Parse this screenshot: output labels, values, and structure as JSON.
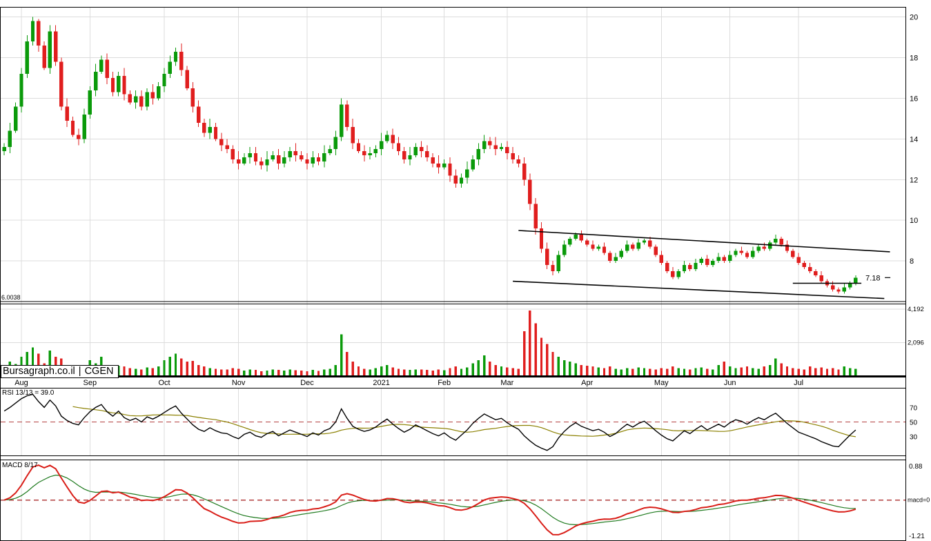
{
  "watermark": {
    "site": "Bursagraph.co.il",
    "separator": "|",
    "ticker": "CGEN"
  },
  "panels": {
    "rsi": {
      "label": "RSI 13/13 = 39.0",
      "ticks": [
        70,
        50,
        30
      ],
      "midline": 50
    },
    "macd": {
      "label": "MACD 8/17",
      "top_label": "0.88",
      "zero_label": "macd=0",
      "bottom_label": "-1.21"
    }
  },
  "annotations": {
    "level_line": {
      "value": 6.0038,
      "label": "6.0038"
    },
    "last_price": {
      "value": 7.18,
      "label": "7.18"
    },
    "channel": {
      "upper": {
        "i1": 90,
        "p1": 9.5,
        "i2": 155,
        "p2": 8.45
      },
      "lower": {
        "i1": 89,
        "p1": 7.0,
        "i2": 154,
        "p2": 6.15
      }
    },
    "support_segment": {
      "i1": 138,
      "i2": 150,
      "p": 6.9
    }
  },
  "colors": {
    "up": "#0a9a0a",
    "down": "#e01e1e",
    "grid": "#dcdcdc",
    "border": "#000000",
    "dashed": "#b23b3b",
    "rsi_line": "#000000",
    "rsi_ma": "#8b8000",
    "macd_line": "#d91e18",
    "macd_signal": "#1e7a1e",
    "volume_label": "#444444"
  },
  "chart_data": {
    "type": "candlestick",
    "symbol": "CGEN",
    "source": "Bursagraph.co.il",
    "x_ticks": [
      {
        "label": "Aug",
        "i": 3
      },
      {
        "label": "Sep",
        "i": 15
      },
      {
        "label": "Oct",
        "i": 28
      },
      {
        "label": "Nov",
        "i": 41
      },
      {
        "label": "Dec",
        "i": 53
      },
      {
        "label": "2021",
        "i": 66
      },
      {
        "label": "Feb",
        "i": 77
      },
      {
        "label": "Mar",
        "i": 88
      },
      {
        "label": "Apr",
        "i": 102
      },
      {
        "label": "May",
        "i": 115
      },
      {
        "label": "Jun",
        "i": 127
      },
      {
        "label": "Jul",
        "i": 139
      }
    ],
    "price_axis": {
      "ticks": [
        20,
        18,
        16,
        14,
        12,
        10,
        8
      ],
      "min": 5.9,
      "max": 20.5
    },
    "volume_axis": {
      "ticks": [
        {
          "value": 4192,
          "label": "4,192"
        },
        {
          "value": 2096,
          "label": "2,096"
        }
      ],
      "max": 4400
    },
    "candles": [
      [
        13.4,
        13.8,
        13.2,
        13.6
      ],
      [
        13.6,
        14.8,
        13.3,
        14.4
      ],
      [
        14.4,
        15.8,
        14.3,
        15.6
      ],
      [
        15.6,
        17.5,
        15.3,
        17.2
      ],
      [
        17.2,
        19.1,
        17.0,
        18.8
      ],
      [
        18.8,
        20.0,
        18.6,
        19.8
      ],
      [
        19.8,
        19.9,
        18.3,
        18.6
      ],
      [
        18.6,
        18.8,
        17.4,
        17.5
      ],
      [
        17.5,
        19.6,
        17.2,
        19.3
      ],
      [
        19.3,
        19.6,
        17.6,
        17.8
      ],
      [
        17.8,
        18.0,
        15.4,
        15.6
      ],
      [
        15.6,
        16.0,
        14.6,
        14.9
      ],
      [
        14.9,
        15.1,
        14.1,
        14.2
      ],
      [
        14.2,
        14.5,
        13.7,
        14.0
      ],
      [
        14.0,
        15.5,
        13.8,
        15.2
      ],
      [
        15.2,
        16.6,
        15.0,
        16.4
      ],
      [
        16.4,
        17.7,
        16.1,
        17.3
      ],
      [
        17.3,
        18.1,
        17.2,
        17.9
      ],
      [
        17.9,
        18.2,
        16.7,
        17.0
      ],
      [
        17.0,
        17.3,
        16.1,
        16.3
      ],
      [
        16.3,
        17.3,
        16.1,
        17.1
      ],
      [
        17.1,
        17.5,
        15.9,
        16.2
      ],
      [
        16.2,
        16.4,
        15.7,
        15.8
      ],
      [
        15.8,
        16.4,
        15.5,
        16.1
      ],
      [
        16.1,
        16.4,
        15.4,
        15.6
      ],
      [
        15.6,
        16.5,
        15.4,
        16.3
      ],
      [
        16.3,
        16.7,
        15.7,
        16.0
      ],
      [
        16.0,
        16.8,
        15.9,
        16.6
      ],
      [
        16.6,
        17.5,
        16.3,
        17.2
      ],
      [
        17.2,
        18.1,
        17.0,
        17.8
      ],
      [
        17.8,
        18.5,
        17.6,
        18.3
      ],
      [
        18.3,
        18.7,
        17.1,
        17.4
      ],
      [
        17.4,
        17.6,
        16.4,
        16.5
      ],
      [
        16.5,
        16.8,
        15.3,
        15.6
      ],
      [
        15.6,
        15.9,
        14.6,
        14.8
      ],
      [
        14.8,
        15.0,
        14.1,
        14.3
      ],
      [
        14.3,
        15.0,
        14.0,
        14.6
      ],
      [
        14.6,
        14.8,
        13.9,
        14.0
      ],
      [
        14.0,
        14.3,
        13.4,
        13.7
      ],
      [
        13.7,
        14.0,
        13.3,
        13.5
      ],
      [
        13.5,
        13.7,
        12.8,
        13.0
      ],
      [
        13.0,
        13.4,
        12.5,
        12.8
      ],
      [
        12.8,
        13.3,
        12.7,
        13.1
      ],
      [
        13.1,
        13.6,
        12.8,
        13.3
      ],
      [
        13.3,
        13.6,
        12.7,
        12.9
      ],
      [
        12.9,
        13.1,
        12.5,
        12.7
      ],
      [
        12.7,
        13.4,
        12.4,
        13.0
      ],
      [
        13.0,
        13.4,
        12.9,
        13.2
      ],
      [
        13.2,
        13.5,
        12.5,
        12.8
      ],
      [
        12.8,
        13.4,
        12.6,
        13.1
      ],
      [
        13.1,
        13.6,
        12.9,
        13.4
      ],
      [
        13.4,
        13.8,
        12.9,
        13.2
      ],
      [
        13.2,
        13.4,
        12.9,
        13.0
      ],
      [
        13.0,
        13.3,
        12.5,
        12.8
      ],
      [
        12.8,
        13.4,
        12.6,
        13.1
      ],
      [
        13.1,
        13.3,
        12.7,
        12.9
      ],
      [
        12.9,
        13.7,
        12.6,
        13.3
      ],
      [
        13.3,
        13.7,
        13.2,
        13.5
      ],
      [
        13.5,
        14.4,
        13.2,
        14.1
      ],
      [
        14.1,
        16.0,
        13.9,
        15.7
      ],
      [
        15.7,
        15.9,
        14.4,
        14.6
      ],
      [
        14.6,
        15.0,
        13.5,
        13.8
      ],
      [
        13.8,
        14.0,
        13.3,
        13.4
      ],
      [
        13.4,
        13.7,
        12.9,
        13.2
      ],
      [
        13.2,
        13.6,
        13.0,
        13.3
      ],
      [
        13.3,
        13.7,
        13.1,
        13.5
      ],
      [
        13.5,
        14.3,
        13.2,
        13.9
      ],
      [
        13.9,
        14.4,
        13.8,
        14.2
      ],
      [
        14.2,
        14.5,
        13.5,
        13.8
      ],
      [
        13.8,
        14.1,
        13.2,
        13.4
      ],
      [
        13.4,
        13.6,
        12.8,
        13.0
      ],
      [
        13.0,
        13.6,
        12.7,
        13.2
      ],
      [
        13.2,
        13.8,
        13.1,
        13.6
      ],
      [
        13.6,
        13.9,
        13.1,
        13.4
      ],
      [
        13.4,
        13.7,
        12.9,
        13.1
      ],
      [
        13.1,
        13.3,
        12.6,
        12.8
      ],
      [
        12.8,
        13.2,
        12.3,
        12.6
      ],
      [
        12.6,
        13.0,
        12.5,
        12.8
      ],
      [
        12.8,
        13.1,
        11.9,
        12.2
      ],
      [
        12.2,
        12.5,
        11.6,
        11.8
      ],
      [
        11.8,
        12.3,
        11.6,
        12.1
      ],
      [
        12.1,
        12.9,
        11.8,
        12.5
      ],
      [
        12.5,
        13.2,
        12.4,
        13.0
      ],
      [
        13.0,
        13.8,
        12.7,
        13.5
      ],
      [
        13.5,
        14.2,
        13.3,
        13.9
      ],
      [
        13.9,
        14.1,
        13.5,
        13.7
      ],
      [
        13.7,
        14.1,
        13.2,
        13.5
      ],
      [
        13.5,
        13.8,
        13.4,
        13.6
      ],
      [
        13.6,
        13.9,
        13.0,
        13.3
      ],
      [
        13.3,
        13.6,
        12.8,
        13.0
      ],
      [
        13.0,
        13.2,
        12.6,
        12.8
      ],
      [
        12.8,
        13.1,
        11.7,
        12.0
      ],
      [
        12.0,
        12.3,
        10.5,
        10.8
      ],
      [
        10.8,
        11.1,
        9.3,
        9.6
      ],
      [
        9.6,
        9.9,
        8.4,
        8.6
      ],
      [
        8.6,
        8.9,
        7.6,
        7.8
      ],
      [
        7.8,
        8.0,
        7.3,
        7.5
      ],
      [
        7.5,
        8.5,
        7.4,
        8.3
      ],
      [
        8.3,
        9.0,
        8.2,
        8.8
      ],
      [
        8.8,
        9.2,
        8.7,
        9.1
      ],
      [
        9.1,
        9.4,
        9.0,
        9.3
      ],
      [
        9.3,
        9.5,
        8.9,
        9.0
      ],
      [
        9.0,
        9.1,
        8.7,
        8.8
      ],
      [
        8.8,
        9.0,
        8.5,
        8.6
      ],
      [
        8.6,
        8.8,
        8.5,
        8.7
      ],
      [
        8.7,
        8.9,
        8.3,
        8.4
      ],
      [
        8.4,
        8.5,
        7.9,
        8.0
      ],
      [
        8.0,
        8.4,
        7.9,
        8.2
      ],
      [
        8.2,
        8.6,
        8.1,
        8.5
      ],
      [
        8.5,
        9.0,
        8.4,
        8.8
      ],
      [
        8.8,
        8.9,
        8.5,
        8.6
      ],
      [
        8.6,
        9.1,
        8.5,
        8.9
      ],
      [
        8.9,
        9.1,
        8.8,
        9.0
      ],
      [
        9.0,
        9.2,
        8.6,
        8.7
      ],
      [
        8.7,
        8.8,
        8.2,
        8.3
      ],
      [
        8.3,
        8.5,
        7.8,
        7.9
      ],
      [
        7.9,
        8.0,
        7.4,
        7.5
      ],
      [
        7.5,
        7.7,
        7.1,
        7.2
      ],
      [
        7.2,
        7.6,
        7.1,
        7.5
      ],
      [
        7.5,
        8.0,
        7.4,
        7.8
      ],
      [
        7.8,
        7.9,
        7.5,
        7.6
      ],
      [
        7.6,
        8.1,
        7.5,
        7.9
      ],
      [
        7.9,
        8.2,
        7.8,
        8.1
      ],
      [
        8.1,
        8.3,
        7.7,
        7.8
      ],
      [
        7.8,
        8.1,
        7.7,
        8.0
      ],
      [
        8.0,
        8.4,
        7.9,
        8.2
      ],
      [
        8.2,
        8.3,
        7.9,
        8.0
      ],
      [
        8.0,
        8.5,
        7.9,
        8.3
      ],
      [
        8.3,
        8.6,
        8.2,
        8.5
      ],
      [
        8.5,
        8.7,
        8.3,
        8.4
      ],
      [
        8.4,
        8.5,
        8.1,
        8.2
      ],
      [
        8.2,
        8.7,
        8.1,
        8.5
      ],
      [
        8.5,
        8.8,
        8.4,
        8.7
      ],
      [
        8.7,
        8.9,
        8.5,
        8.6
      ],
      [
        8.6,
        9.0,
        8.5,
        8.9
      ],
      [
        8.9,
        9.3,
        8.8,
        9.1
      ],
      [
        9.1,
        9.2,
        8.7,
        8.8
      ],
      [
        8.8,
        9.0,
        8.4,
        8.5
      ],
      [
        8.5,
        8.6,
        8.1,
        8.2
      ],
      [
        8.2,
        8.4,
        7.8,
        7.9
      ],
      [
        7.9,
        8.0,
        7.6,
        7.7
      ],
      [
        7.7,
        7.9,
        7.4,
        7.5
      ],
      [
        7.5,
        7.6,
        7.2,
        7.3
      ],
      [
        7.3,
        7.5,
        6.9,
        7.0
      ],
      [
        7.0,
        7.1,
        6.7,
        6.8
      ],
      [
        6.8,
        7.0,
        6.5,
        6.6
      ],
      [
        6.6,
        6.7,
        6.4,
        6.5
      ],
      [
        6.5,
        6.9,
        6.4,
        6.7
      ],
      [
        6.7,
        7.0,
        6.6,
        6.9
      ],
      [
        6.9,
        7.3,
        6.8,
        7.18
      ]
    ],
    "volumes": [
      600,
      900,
      750,
      1200,
      1500,
      1800,
      1400,
      800,
      1600,
      1200,
      1100,
      700,
      500,
      450,
      600,
      1000,
      800,
      1200,
      700,
      550,
      650,
      600,
      500,
      450,
      400,
      550,
      500,
      600,
      1000,
      1200,
      1400,
      1100,
      900,
      950,
      700,
      600,
      500,
      450,
      400,
      400,
      500,
      450,
      350,
      400,
      380,
      300,
      350,
      420,
      380,
      350,
      400,
      360,
      350,
      300,
      380,
      320,
      400,
      450,
      700,
      2600,
      1500,
      900,
      600,
      450,
      400,
      500,
      600,
      700,
      550,
      450,
      400,
      380,
      420,
      400,
      380,
      350,
      400,
      360,
      500,
      600,
      450,
      550,
      800,
      1000,
      1300,
      900,
      700,
      600,
      550,
      500,
      450,
      2800,
      4100,
      3300,
      2400,
      2000,
      1500,
      1200,
      1000,
      900,
      800,
      700,
      650,
      600,
      550,
      500,
      600,
      450,
      400,
      500,
      450,
      550,
      500,
      450,
      400,
      500,
      450,
      600,
      500,
      450,
      400,
      500,
      550,
      450,
      400,
      700,
      900,
      600,
      500,
      550,
      600,
      500,
      450,
      600,
      700,
      1100,
      800,
      600,
      500,
      450,
      400,
      600,
      500,
      550,
      450,
      500,
      400,
      600,
      500,
      450
    ],
    "rsi": {
      "label": "RSI 13/13 = 39.0",
      "last": 39.0,
      "range": [
        5,
        95
      ],
      "ma_window": 13,
      "values": [
        65,
        70,
        76,
        82,
        86,
        88,
        78,
        70,
        80,
        72,
        58,
        52,
        48,
        46,
        56,
        64,
        70,
        74,
        64,
        58,
        65,
        56,
        52,
        55,
        50,
        57,
        54,
        58,
        63,
        68,
        72,
        62,
        54,
        46,
        40,
        37,
        42,
        38,
        35,
        34,
        30,
        27,
        33,
        36,
        31,
        29,
        34,
        37,
        31,
        35,
        39,
        36,
        33,
        30,
        35,
        32,
        38,
        41,
        50,
        68,
        55,
        44,
        40,
        37,
        39,
        43,
        49,
        54,
        47,
        41,
        36,
        40,
        46,
        42,
        38,
        34,
        31,
        35,
        29,
        25,
        32,
        39,
        48,
        55,
        61,
        57,
        53,
        55,
        49,
        44,
        40,
        31,
        24,
        18,
        14,
        11,
        16,
        28,
        37,
        44,
        49,
        44,
        41,
        38,
        40,
        36,
        30,
        34,
        41,
        47,
        43,
        48,
        51,
        45,
        38,
        32,
        27,
        24,
        31,
        38,
        34,
        40,
        45,
        39,
        43,
        47,
        43,
        49,
        53,
        51,
        47,
        52,
        56,
        53,
        58,
        62,
        55,
        48,
        42,
        36,
        33,
        30,
        27,
        23,
        20,
        17,
        16,
        24,
        32,
        39
      ]
    },
    "macd": {
      "fast": 8,
      "slow": 17,
      "signal_period": 9
    }
  }
}
